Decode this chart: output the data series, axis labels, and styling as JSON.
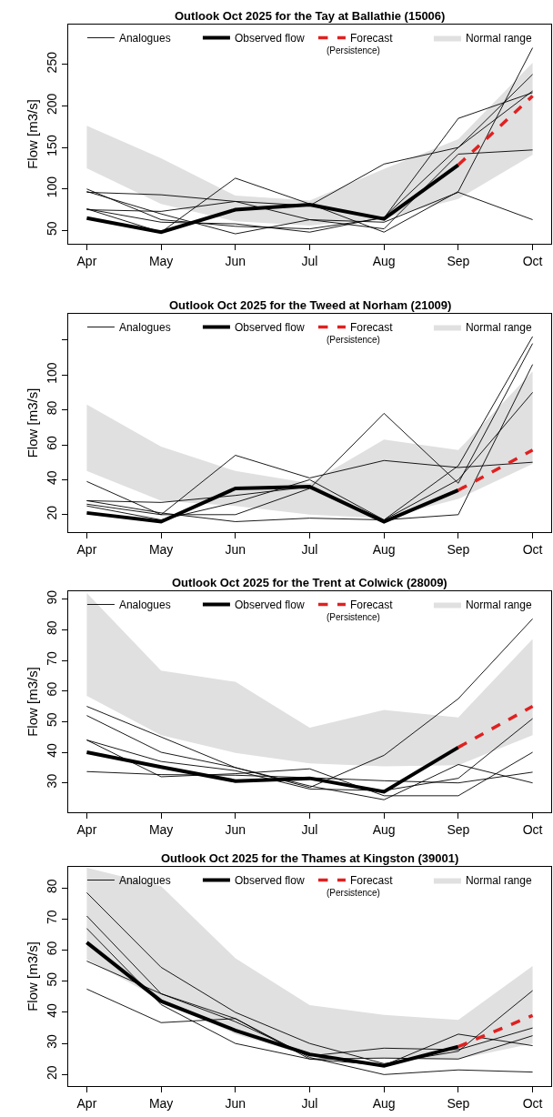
{
  "chart_data": [
    {
      "type": "line",
      "title": "Outlook Oct 2025 for the Tay at Ballathie (15006)",
      "ylabel": "Flow [m3/s]",
      "legend": "top",
      "annotations": [
        "(Persistence)"
      ],
      "categories": [
        "Apr",
        "May",
        "Jun",
        "Jul",
        "Aug",
        "Sep",
        "Oct"
      ],
      "ylim": [
        34,
        298
      ],
      "yticks": [
        50,
        100,
        150,
        200,
        250
      ],
      "series": [
        {
          "name": "Normal range",
          "color": "#e0e0e0",
          "values": [
            null,
            null,
            null,
            null,
            null,
            null,
            null
          ],
          "lower": [
            125,
            82,
            61,
            56,
            65,
            88,
            141
          ],
          "upper": [
            176,
            137,
            92,
            86,
            124,
            160,
            252
          ]
        },
        {
          "name": "Analogues",
          "color": "#000000",
          "values": [
            96,
            93,
            85,
            80,
            130,
            150,
            238
          ]
        },
        {
          "color": "#000000",
          "values": [
            100,
            63,
            55,
            52,
            65,
            185,
            216
          ]
        },
        {
          "color": "#000000",
          "values": [
            76,
            48,
            113,
            82,
            48,
            97,
            270
          ]
        },
        {
          "color": "#000000",
          "values": [
            75,
            73,
            85,
            63,
            52,
            142,
            147
          ]
        },
        {
          "color": "#000000",
          "values": [
            97,
            70,
            46,
            63,
            60,
            96,
            63
          ]
        },
        {
          "color": "#000000",
          "values": [
            76,
            60,
            58,
            48,
            66,
            150,
            218
          ]
        },
        {
          "name": "Observed flow",
          "color": "#000000",
          "values": [
            65,
            48,
            75,
            81,
            64,
            129,
            null
          ]
        },
        {
          "name": "Forecast",
          "color": "#e02020",
          "line_style": "dashed",
          "values": [
            null,
            null,
            null,
            null,
            null,
            129,
            212
          ]
        }
      ]
    },
    {
      "type": "line",
      "title": "Outlook Oct 2025 for the Tweed at Norham (21009)",
      "ylabel": "Flow [m3/s]",
      "legend": "top",
      "annotations": [
        "(Persistence)"
      ],
      "categories": [
        "Apr",
        "May",
        "Jun",
        "Jul",
        "Aug",
        "Sep",
        "Oct"
      ],
      "ylim": [
        10,
        135
      ],
      "yticks": [
        20,
        40,
        60,
        80,
        100,
        {
          "value": 120,
          "label": null
        }
      ],
      "series": [
        {
          "name": "Normal range",
          "color": "#e0e0e0",
          "values": [
            null,
            null,
            null,
            null,
            null,
            null,
            null
          ],
          "lower": [
            45,
            28,
            25,
            20,
            18,
            29,
            49
          ],
          "upper": [
            83,
            59,
            45,
            38,
            63,
            57,
            102
          ]
        },
        {
          "name": "Analogues",
          "color": "#000000",
          "values": [
            28,
            27,
            31,
            36,
            17,
            48,
            122
          ]
        },
        {
          "color": "#000000",
          "values": [
            39,
            20,
            54,
            41,
            51,
            47,
            50
          ]
        },
        {
          "color": "#000000",
          "values": [
            26,
            20,
            20,
            35,
            78,
            38,
            118
          ]
        },
        {
          "color": "#000000",
          "values": [
            25,
            17,
            27,
            40,
            17,
            20,
            106
          ]
        },
        {
          "color": "#000000",
          "values": [
            28,
            21,
            16,
            18,
            17,
            40,
            90
          ]
        },
        {
          "name": "Observed flow",
          "color": "#000000",
          "values": [
            21,
            16,
            35,
            36,
            16,
            34,
            null
          ]
        },
        {
          "name": "Forecast",
          "color": "#e02020",
          "line_style": "dashed",
          "values": [
            null,
            null,
            null,
            null,
            null,
            34,
            57
          ]
        }
      ]
    },
    {
      "type": "line",
      "title": "Outlook Oct 2025 for the Trent at Colwick (28009)",
      "ylabel": "Flow [m3/s]",
      "legend": "top",
      "annotations": [
        "(Persistence)"
      ],
      "categories": [
        "Apr",
        "May",
        "Jun",
        "Jul",
        "Aug",
        "Sep",
        "Oct"
      ],
      "ylim": [
        20.4,
        92.6
      ],
      "yticks": [
        30,
        40,
        50,
        60,
        70,
        80,
        90
      ],
      "series": [
        {
          "name": "Normal range",
          "color": "#e0e0e0",
          "values": [
            null,
            null,
            null,
            null,
            null,
            null,
            null
          ],
          "lower": [
            58.4,
            45.6,
            39.8,
            36.4,
            35.4,
            35.8,
            45.6
          ],
          "upper": [
            92,
            66.7,
            63,
            48,
            53.8,
            51.4,
            77
          ]
        },
        {
          "name": "Analogues",
          "color": "#000000",
          "values": [
            55,
            45,
            35,
            28.5,
            39,
            57.5,
            83.6
          ]
        },
        {
          "color": "#000000",
          "values": [
            52,
            40,
            35,
            29,
            24.5,
            36,
            30
          ]
        },
        {
          "color": "#000000",
          "values": [
            44,
            32,
            33,
            34.6,
            25.8,
            25.8,
            40
          ]
        },
        {
          "color": "#000000",
          "values": [
            44,
            37,
            34,
            28,
            27.5,
            31.5,
            51
          ]
        },
        {
          "color": "#000000",
          "values": [
            33.7,
            32.7,
            32.5,
            31.7,
            30.7,
            30,
            33.5
          ]
        },
        {
          "name": "Observed flow",
          "color": "#000000",
          "values": [
            40,
            35.2,
            30.6,
            31.5,
            27.1,
            41.6,
            null
          ]
        },
        {
          "name": "Forecast",
          "color": "#e02020",
          "line_style": "dashed",
          "values": [
            null,
            null,
            null,
            null,
            null,
            41.6,
            55
          ]
        }
      ]
    },
    {
      "type": "line",
      "title": "Outlook Oct 2025 for the Thames at Kingston (39001)",
      "ylabel": "Flow [m3/s]",
      "legend": "top",
      "annotations": [
        "(Persistence)"
      ],
      "categories": [
        "Apr",
        "May",
        "Jun",
        "Jul",
        "Aug",
        "Sep",
        "Oct"
      ],
      "ylim": [
        16.3,
        86.8
      ],
      "yticks": [
        20,
        30,
        40,
        50,
        60,
        70,
        80
      ],
      "series": [
        {
          "name": "Normal range",
          "color": "#e0e0e0",
          "values": [
            null,
            null,
            null,
            null,
            null,
            null,
            null
          ],
          "lower": [
            57,
            44,
            33,
            26,
            25,
            25,
            30
          ],
          "upper": [
            86.5,
            80.6,
            57.4,
            42.3,
            39.2,
            37.6,
            54.9
          ]
        },
        {
          "name": "Analogues",
          "color": "#000000",
          "values": [
            78.5,
            54.5,
            40,
            30,
            23.5,
            27.5,
            47
          ]
        },
        {
          "color": "#000000",
          "values": [
            71,
            46,
            37,
            26,
            28.5,
            28,
            35
          ]
        },
        {
          "color": "#000000",
          "values": [
            67,
            42.5,
            30,
            25,
            25.3,
            25,
            32.5
          ]
        },
        {
          "color": "#000000",
          "values": [
            56.5,
            46,
            38,
            25.5,
            20,
            21.5,
            20.8
          ]
        },
        {
          "color": "#000000",
          "values": [
            47.5,
            36.7,
            38,
            25,
            23,
            33,
            29.3
          ]
        },
        {
          "name": "Observed flow",
          "color": "#000000",
          "values": [
            62.5,
            43.6,
            34.2,
            26.5,
            22.8,
            29,
            null
          ]
        },
        {
          "name": "Forecast",
          "color": "#e02020",
          "line_style": "dashed",
          "values": [
            null,
            null,
            null,
            null,
            null,
            29,
            39
          ]
        }
      ]
    }
  ]
}
